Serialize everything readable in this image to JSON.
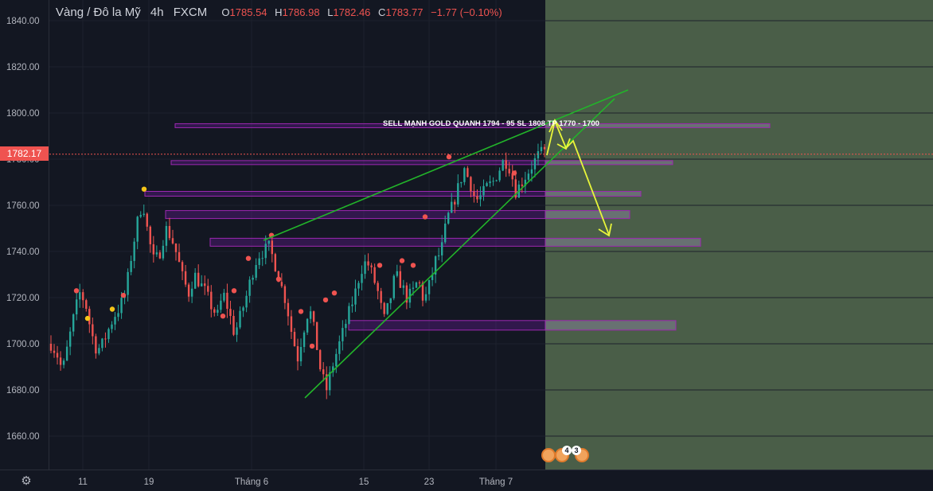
{
  "header": {
    "symbol": "Vàng / Đô la Mỹ",
    "interval": "4h",
    "exchange": "FXCM",
    "open_label": "O",
    "open": "1785.54",
    "high_label": "H",
    "high": "1786.98",
    "low_label": "L",
    "low": "1782.46",
    "close_label": "C",
    "close": "1783.77",
    "change": "−1.77 (−0.10%)"
  },
  "current_price": "1782.17",
  "events": {
    "count_a": "4",
    "count_b": "3"
  },
  "colors": {
    "background": "#131722",
    "up": "#26a69a",
    "down": "#ef5350",
    "trendline": "#22b42a",
    "arrow": "#e8f53a",
    "zone_border": "#9c27b0",
    "forecast_area": "#4a5e48"
  },
  "chart_data": {
    "type": "candlestick",
    "y_axis": {
      "range": [
        1652,
        1846
      ],
      "ticks": [
        "1840.00",
        "1820.00",
        "1800.00",
        "1780.00",
        "1760.00",
        "1740.00",
        "1720.00",
        "1700.00",
        "1680.00",
        "1660.00"
      ],
      "tick_values": [
        1840,
        1820,
        1800,
        1780,
        1760,
        1740,
        1720,
        1700,
        1680,
        1660
      ]
    },
    "x_axis": {
      "ticks": [
        "11",
        "19",
        "Tháng 6",
        "15",
        "23",
        "Tháng 7"
      ]
    },
    "annotation": "SELL MẠNH GOLD QUANH 1794 - 95 SL 1808 TP 1770 - 1700",
    "price_levels": [
      1794.5,
      1778.5,
      1765,
      1756,
      1744,
      1708
    ],
    "close_path": [
      1700,
      1696,
      1688,
      1700,
      1712,
      1722,
      1718,
      1705,
      1697,
      1700,
      1706,
      1712,
      1716,
      1722,
      1738,
      1752,
      1762,
      1746,
      1735,
      1740,
      1750,
      1746,
      1738,
      1728,
      1722,
      1730,
      1726,
      1722,
      1716,
      1712,
      1722,
      1714,
      1704,
      1712,
      1720,
      1730,
      1738,
      1740,
      1742,
      1735,
      1726,
      1718,
      1704,
      1694,
      1706,
      1716,
      1704,
      1688,
      1680,
      1690,
      1698,
      1706,
      1714,
      1722,
      1732,
      1736,
      1730,
      1722,
      1710,
      1718,
      1730,
      1726,
      1720,
      1722,
      1728,
      1718,
      1726,
      1736,
      1740,
      1754,
      1760,
      1768,
      1776,
      1770,
      1762,
      1764,
      1768,
      1770,
      1775,
      1780,
      1776,
      1766,
      1770,
      1774,
      1778,
      1782,
      1783
    ]
  }
}
